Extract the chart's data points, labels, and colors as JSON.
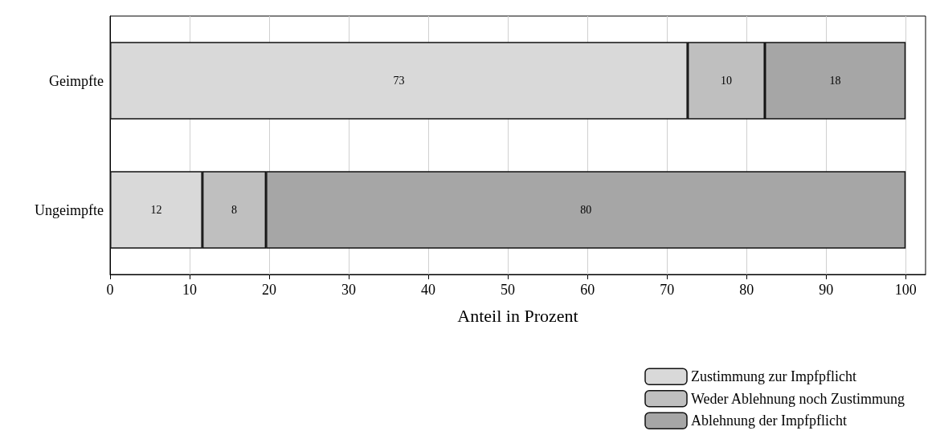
{
  "chart_data": {
    "type": "bar",
    "orientation": "horizontal",
    "stacked": true,
    "xlabel": "Anteil in Prozent",
    "categories": [
      "Geimpfte",
      "Ungeimpfte"
    ],
    "series": [
      {
        "name": "Zustimmung zur Impfpflicht",
        "color": "#d9d9d9",
        "values": [
          72.6,
          11.6
        ],
        "value_labels": [
          "73",
          "12"
        ]
      },
      {
        "name": "Weder Ablehnung noch Zustimmung",
        "color": "#bfbfbf",
        "values": [
          9.7,
          8.0
        ],
        "value_labels": [
          "10",
          "8"
        ]
      },
      {
        "name": "Ablehnung der Impfpflicht",
        "color": "#a6a6a6",
        "values": [
          17.7,
          80.4
        ],
        "value_labels": [
          "18",
          "80"
        ]
      }
    ],
    "xlim": [
      0,
      102.5
    ],
    "xticks": [
      0,
      10,
      20,
      30,
      40,
      50,
      60,
      70,
      80,
      90,
      100
    ],
    "grid": "x",
    "legend": "bottom right"
  }
}
